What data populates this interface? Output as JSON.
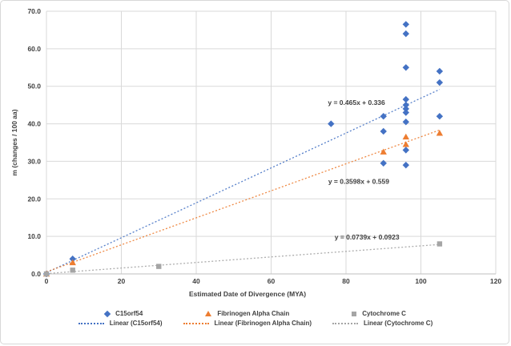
{
  "chart_data": {
    "type": "scatter",
    "title": "",
    "xlabel": "Estimated Date of Divergence (MYA)",
    "ylabel": "m (changes / 100 aa)",
    "xlim": [
      0,
      120
    ],
    "ylim": [
      0,
      70
    ],
    "x_ticks": [
      "0",
      "20",
      "40",
      "60",
      "80",
      "100",
      "120"
    ],
    "y_ticks": [
      "0.0",
      "10.0",
      "20.0",
      "30.0",
      "40.0",
      "50.0",
      "60.0",
      "70.0"
    ],
    "grid": true,
    "legend_position": "bottom",
    "colors": {
      "grid": "#d9d9d9",
      "axis_line": "#bfbfbf",
      "text": "#404040"
    },
    "series": [
      {
        "name": "C15orf54",
        "marker": "diamond",
        "color": "#4472C4",
        "points": [
          [
            0,
            0
          ],
          [
            7,
            4
          ],
          [
            76,
            40
          ],
          [
            90,
            42
          ],
          [
            90,
            38
          ],
          [
            90,
            29.5
          ],
          [
            96,
            66.5
          ],
          [
            96,
            64
          ],
          [
            96,
            55
          ],
          [
            96,
            46.5
          ],
          [
            96,
            45
          ],
          [
            96,
            44
          ],
          [
            96,
            43
          ],
          [
            96,
            40.5
          ],
          [
            96,
            33
          ],
          [
            96,
            29
          ],
          [
            105,
            54
          ],
          [
            105,
            51
          ],
          [
            105,
            42
          ]
        ],
        "trendline": {
          "slope": 0.465,
          "intercept": 0.336,
          "equation": "y = 0.465x + 0.336",
          "x_range": [
            0,
            105
          ],
          "label_at": [
            82.8,
            45.0
          ]
        }
      },
      {
        "name": "Fibrinogen Alpha Chain",
        "marker": "triangle",
        "color": "#ED7D31",
        "points": [
          [
            0,
            0
          ],
          [
            7,
            3
          ],
          [
            90,
            32.5
          ],
          [
            96,
            36.5
          ],
          [
            96,
            34.5
          ],
          [
            105,
            37.5
          ]
        ],
        "trendline": {
          "slope": 0.3598,
          "intercept": 0.559,
          "equation": "y = 0.3598x + 0.559",
          "x_range": [
            0,
            105
          ],
          "label_at": [
            83.4,
            24.0
          ]
        }
      },
      {
        "name": "Cytochrome C",
        "marker": "square",
        "color": "#A5A5A5",
        "points": [
          [
            0,
            0
          ],
          [
            7,
            1
          ],
          [
            30,
            2
          ],
          [
            105,
            8
          ]
        ],
        "trendline": {
          "slope": 0.0739,
          "intercept": 0.0923,
          "equation": "y = 0.0739x + 0.0923",
          "x_range": [
            0,
            105
          ],
          "label_at": [
            85.6,
            9.2
          ]
        }
      }
    ],
    "legend": {
      "marker_entries": [
        "C15orf54",
        "Fibrinogen Alpha Chain",
        "Cytochrome C"
      ],
      "line_entries": [
        "Linear (C15orf54)",
        "Linear (Fibrinogen Alpha Chain)",
        "Linear (Cytochrome C)"
      ]
    }
  }
}
